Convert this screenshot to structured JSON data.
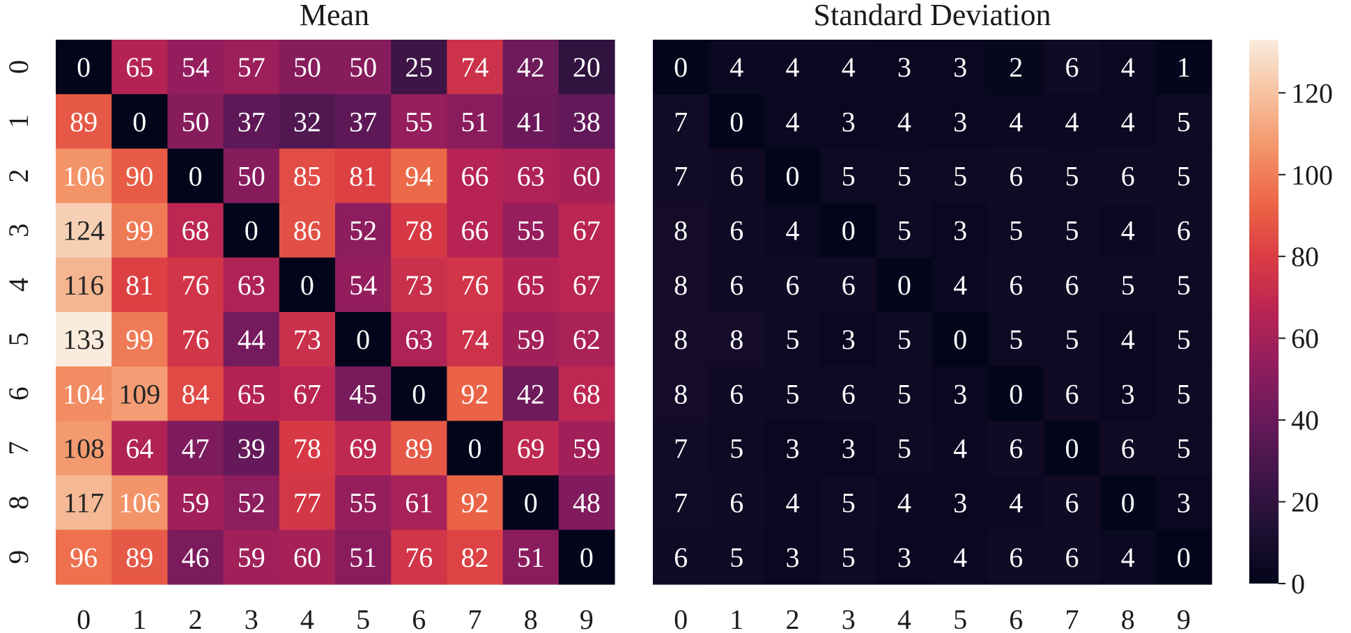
{
  "chart_data": [
    {
      "type": "heatmap",
      "title": "Mean",
      "x_tick_labels": [
        "0",
        "1",
        "2",
        "3",
        "4",
        "5",
        "6",
        "7",
        "8",
        "9"
      ],
      "y_tick_labels": [
        "0",
        "1",
        "2",
        "3",
        "4",
        "5",
        "6",
        "7",
        "8",
        "9"
      ],
      "values": [
        [
          0,
          65,
          54,
          57,
          50,
          50,
          25,
          74,
          42,
          20
        ],
        [
          89,
          0,
          50,
          37,
          32,
          37,
          55,
          51,
          41,
          38
        ],
        [
          106,
          90,
          0,
          50,
          85,
          81,
          94,
          66,
          63,
          60
        ],
        [
          124,
          99,
          68,
          0,
          86,
          52,
          78,
          66,
          55,
          67
        ],
        [
          116,
          81,
          76,
          63,
          0,
          54,
          73,
          76,
          65,
          67
        ],
        [
          133,
          99,
          76,
          44,
          73,
          0,
          63,
          74,
          59,
          62
        ],
        [
          104,
          109,
          84,
          65,
          67,
          45,
          0,
          92,
          42,
          68
        ],
        [
          108,
          64,
          47,
          39,
          78,
          69,
          89,
          0,
          69,
          59
        ],
        [
          117,
          106,
          59,
          52,
          77,
          55,
          61,
          92,
          0,
          48
        ],
        [
          96,
          89,
          46,
          59,
          60,
          51,
          76,
          82,
          51,
          0
        ]
      ]
    },
    {
      "type": "heatmap",
      "title": "Standard Deviation",
      "x_tick_labels": [
        "0",
        "1",
        "2",
        "3",
        "4",
        "5",
        "6",
        "7",
        "8",
        "9"
      ],
      "y_tick_labels": [],
      "values": [
        [
          0,
          4,
          4,
          4,
          3,
          3,
          2,
          6,
          4,
          1
        ],
        [
          7,
          0,
          4,
          3,
          4,
          3,
          4,
          4,
          4,
          5
        ],
        [
          7,
          6,
          0,
          5,
          5,
          5,
          6,
          5,
          6,
          5
        ],
        [
          8,
          6,
          4,
          0,
          5,
          3,
          5,
          5,
          4,
          6
        ],
        [
          8,
          6,
          6,
          6,
          0,
          4,
          6,
          6,
          5,
          5
        ],
        [
          8,
          8,
          5,
          3,
          5,
          0,
          5,
          5,
          4,
          5
        ],
        [
          8,
          6,
          5,
          6,
          5,
          3,
          0,
          6,
          3,
          5
        ],
        [
          7,
          5,
          3,
          3,
          5,
          4,
          6,
          0,
          6,
          5
        ],
        [
          7,
          6,
          4,
          5,
          4,
          3,
          4,
          6,
          0,
          3
        ],
        [
          6,
          5,
          3,
          5,
          3,
          4,
          6,
          6,
          4,
          0
        ]
      ]
    }
  ],
  "colorbar": {
    "colormap": "rocket",
    "vmin": 0,
    "vmax": 133,
    "tick_values": [
      0,
      20,
      40,
      60,
      80,
      100,
      120
    ],
    "tick_labels": [
      "0",
      "20",
      "40",
      "60",
      "80",
      "100",
      "120"
    ]
  }
}
